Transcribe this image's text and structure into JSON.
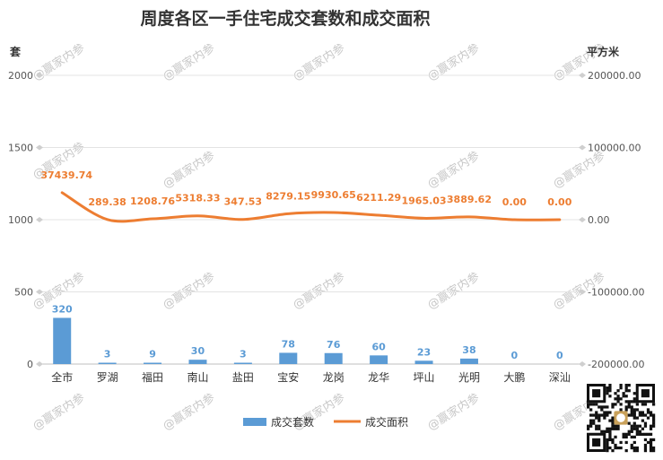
{
  "chart_data": {
    "type": "bar",
    "title": "周度各区一手住宅成交套数和成交面积",
    "y_left_unit": "套",
    "y_right_unit": "平方米",
    "categories": [
      "全市",
      "罗湖",
      "福田",
      "南山",
      "盐田",
      "宝安",
      "龙岗",
      "龙华",
      "坪山",
      "光明",
      "大鹏",
      "深汕"
    ],
    "series": [
      {
        "name": "成交套数",
        "type": "bar",
        "axis": "left",
        "values": [
          320,
          3,
          9,
          30,
          3,
          78,
          76,
          60,
          23,
          38,
          0,
          0
        ],
        "labels": [
          "320",
          "3",
          "9",
          "30",
          "3",
          "78",
          "76",
          "60",
          "23",
          "38",
          "0",
          "0"
        ],
        "color": "#5b9bd5"
      },
      {
        "name": "成交面积",
        "type": "line",
        "axis": "right",
        "values": [
          37439.74,
          289.38,
          1208.76,
          5318.33,
          347.53,
          8279.15,
          9930.65,
          6211.29,
          1965.03,
          3889.62,
          0.0,
          0.0
        ],
        "labels": [
          "37439.74",
          "289.38",
          "1208.76",
          "5318.33",
          "347.53",
          "8279.15",
          "9930.65",
          "6211.29",
          "1965.03",
          "3889.62",
          "0.00",
          "0.00"
        ],
        "color": "#ed7d31"
      }
    ],
    "y_left": {
      "ylim": [
        0,
        2000
      ],
      "ticks": [
        0,
        500,
        1000,
        1500,
        2000
      ],
      "tick_labels": [
        "0",
        "500",
        "1000",
        "1500",
        "2000"
      ]
    },
    "y_right": {
      "ylim": [
        -200000,
        200000
      ],
      "ticks": [
        -200000,
        -100000,
        0,
        100000,
        200000
      ],
      "tick_labels": [
        "-200000.00",
        "-100000.00",
        "0.00",
        "100000.00",
        "200000.00"
      ]
    },
    "grid": true,
    "legend_position": "bottom"
  },
  "watermark": {
    "text": "@赢家内参"
  },
  "qr_code": {
    "icon": "qr-code-icon"
  }
}
